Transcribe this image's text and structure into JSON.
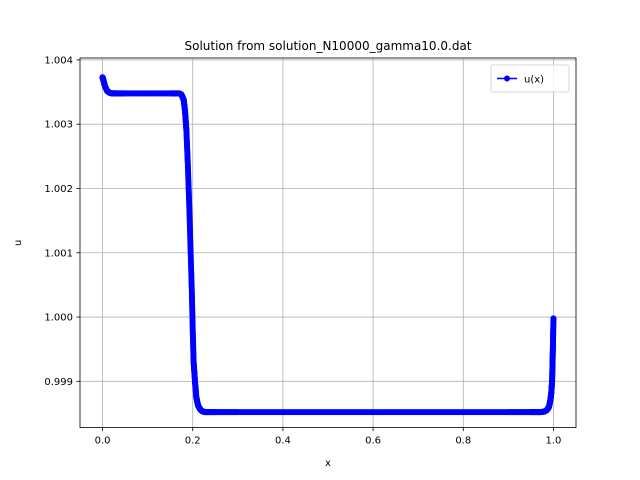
{
  "chart_data": {
    "type": "line",
    "title": "Solution from solution_N10000_gamma10.0.dat",
    "xlabel": "x",
    "ylabel": "u",
    "xlim": [
      -0.05,
      1.05
    ],
    "ylim": [
      0.99828,
      1.00403
    ],
    "xticks": [
      0.0,
      0.2,
      0.4,
      0.6,
      0.8,
      1.0
    ],
    "xtick_labels": [
      "0.0",
      "0.2",
      "0.4",
      "0.6",
      "0.8",
      "1.0"
    ],
    "yticks": [
      0.999,
      1.0,
      1.001,
      1.002,
      1.003,
      1.004
    ],
    "ytick_labels": [
      "0.999",
      "1.000",
      "1.001",
      "1.002",
      "1.003",
      "1.004"
    ],
    "grid": true,
    "legend_position": "top-right",
    "series": [
      {
        "name": "u(x)",
        "color": "#0000ff",
        "marker": "circle",
        "x": [
          0.0,
          0.002,
          0.005,
          0.01,
          0.015,
          0.02,
          0.03,
          0.05,
          0.1,
          0.15,
          0.17,
          0.175,
          0.18,
          0.183,
          0.186,
          0.189,
          0.192,
          0.195,
          0.198,
          0.2,
          0.202,
          0.205,
          0.208,
          0.212,
          0.217,
          0.222,
          0.23,
          0.25,
          0.3,
          0.4,
          0.5,
          0.6,
          0.7,
          0.8,
          0.9,
          0.95,
          0.97,
          0.98,
          0.985,
          0.99,
          0.993,
          0.995,
          0.997,
          0.998,
          0.999,
          1.0
        ],
        "y": [
          1.00373,
          1.00368,
          1.0036,
          1.00352,
          1.00349,
          1.00348,
          1.00348,
          1.00348,
          1.00348,
          1.00348,
          1.00348,
          1.00346,
          1.00338,
          1.0032,
          1.0029,
          1.0024,
          1.0018,
          1.0011,
          1.0004,
          0.9998,
          0.9993,
          0.999,
          0.99875,
          0.99862,
          0.99856,
          0.99853,
          0.99852,
          0.99852,
          0.99852,
          0.99852,
          0.99852,
          0.99852,
          0.99852,
          0.99852,
          0.99852,
          0.99852,
          0.99852,
          0.99853,
          0.99855,
          0.9986,
          0.9987,
          0.9988,
          0.999,
          0.9993,
          0.9996,
          0.99998
        ]
      }
    ]
  }
}
